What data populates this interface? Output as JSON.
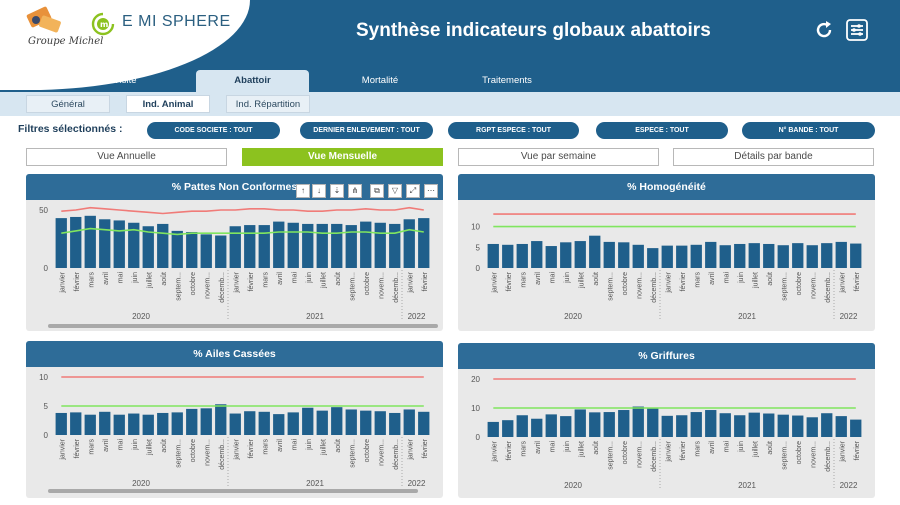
{
  "header": {
    "logo_text": "Groupe Michel",
    "brand": "E MI SPHERE",
    "title": "Synthèse indicateurs globaux abattoirs",
    "icons": [
      "refresh-icon",
      "settings-sliders-icon"
    ]
  },
  "tabs": [
    {
      "label": "Visite"
    },
    {
      "label": "Abattoir"
    },
    {
      "label": "Mortalité"
    },
    {
      "label": "Traitements"
    }
  ],
  "subtabs": [
    {
      "label": "Général"
    },
    {
      "label": "Ind. Animal"
    },
    {
      "label": "Ind. Répartition"
    }
  ],
  "filters": {
    "label": "Filtres sélectionnés :",
    "pills": [
      "CODE SOCIETE : TOUT",
      "DERNIER ENLEVEMENT : TOUT",
      "RGPT ESPECE : TOUT",
      "ESPECE : TOUT",
      "N° BANDE : TOUT"
    ]
  },
  "views": [
    {
      "label": "Vue Annuelle"
    },
    {
      "label": "Vue Mensuelle"
    },
    {
      "label": "Vue par semaine"
    },
    {
      "label": "Détails par bande"
    }
  ],
  "colors": {
    "header_blue": "#1f5f8b",
    "panel_blue": "#2e6c98",
    "bar": "#1f5f8b",
    "accent_green": "#8cc21f",
    "threshold_red": "#f07b78",
    "threshold_green": "#80e55f"
  },
  "toolbar_icons": [
    "sort-up-icon",
    "sort-down-icon",
    "arrow-down-icon",
    "hierarchy-icon",
    "copy-icon",
    "filter-icon",
    "expand-icon",
    "more-icon"
  ],
  "x_axis": {
    "months": [
      "janvier",
      "février",
      "mars",
      "avril",
      "mai",
      "juin",
      "juillet",
      "août",
      "septem...",
      "octobre",
      "novem...",
      "décemb...",
      "janvier",
      "février",
      "mars",
      "avril",
      "mai",
      "juin",
      "juillet",
      "août",
      "septem...",
      "octobre",
      "novem...",
      "décemb...",
      "janvier",
      "février"
    ],
    "years": [
      "2020",
      "2021",
      "2022"
    ]
  },
  "chart_data": [
    {
      "type": "bar",
      "title": "% Pattes Non Conformes",
      "ylim": [
        0,
        50
      ],
      "yticks": [
        0,
        50
      ],
      "values": [
        43,
        44,
        45,
        42,
        41,
        39,
        36,
        38,
        32,
        31,
        29,
        28,
        36,
        37,
        37,
        40,
        39,
        38,
        38,
        38,
        37,
        40,
        39,
        38,
        42,
        43
      ],
      "series": [
        {
          "name": "",
          "color": "#f07b78",
          "values": [
            49,
            50,
            52,
            51,
            50,
            49,
            48,
            47,
            48,
            49,
            49,
            50,
            50,
            51,
            51,
            50,
            50,
            49,
            49,
            50,
            50,
            51,
            50,
            50,
            52,
            50
          ]
        },
        {
          "name": "",
          "color": "#80e55f",
          "values": [
            30,
            32,
            34,
            33,
            32,
            33,
            31,
            30,
            29,
            30,
            30,
            30,
            30,
            30,
            30,
            31,
            31,
            31,
            30,
            30,
            31,
            31,
            30,
            30,
            33,
            31
          ]
        }
      ]
    },
    {
      "type": "bar",
      "title": "% Homogénéité",
      "ylim": [
        0,
        14
      ],
      "yticks": [
        0,
        5,
        10
      ],
      "values": [
        5.8,
        5.6,
        5.8,
        6.5,
        5.3,
        6.2,
        6.5,
        7.8,
        6.3,
        6.2,
        5.6,
        4.8,
        5.4,
        5.4,
        5.6,
        6.3,
        5.5,
        5.8,
        6.0,
        5.8,
        5.5,
        6.0,
        5.5,
        6.0,
        6.3,
        5.9
      ],
      "series": [
        {
          "name": "",
          "color": "#f07b78",
          "values": [
            13,
            13,
            13,
            13,
            13,
            13,
            13,
            13,
            13,
            13,
            13,
            13,
            13,
            13,
            13,
            13,
            13,
            13,
            13,
            13,
            13,
            13,
            13,
            13,
            13,
            13
          ]
        },
        {
          "name": "",
          "color": "#80e55f",
          "values": [
            10,
            10,
            10,
            10,
            10,
            10,
            10,
            10,
            10,
            10,
            10,
            10,
            10,
            10,
            10,
            10,
            10,
            10,
            10,
            10,
            10,
            10,
            10,
            10,
            10,
            10
          ]
        }
      ]
    },
    {
      "type": "bar",
      "title": "% Ailes Cassées",
      "ylim": [
        0,
        10
      ],
      "yticks": [
        0,
        5,
        10
      ],
      "values": [
        3.8,
        3.9,
        3.5,
        4.0,
        3.5,
        3.7,
        3.5,
        3.8,
        3.9,
        4.5,
        4.6,
        5.3,
        3.7,
        4.1,
        4.0,
        3.6,
        3.9,
        4.7,
        4.2,
        4.8,
        4.4,
        4.2,
        4.1,
        3.8,
        4.4,
        4.0
      ],
      "series": [
        {
          "name": "",
          "color": "#f07b78",
          "values": [
            10,
            10,
            10,
            10,
            10,
            10,
            10,
            10,
            10,
            10,
            10,
            10,
            10,
            10,
            10,
            10,
            10,
            10,
            10,
            10,
            10,
            10,
            10,
            10,
            10,
            10
          ]
        },
        {
          "name": "",
          "color": "#80e55f",
          "values": [
            5,
            5,
            5,
            5,
            5,
            5,
            5,
            5,
            5,
            5,
            5,
            5,
            5,
            5,
            5,
            5,
            5,
            5,
            5,
            5,
            5,
            5,
            5,
            5,
            5,
            5
          ]
        }
      ]
    },
    {
      "type": "bar",
      "title": "% Griffures",
      "ylim": [
        0,
        20
      ],
      "yticks": [
        0,
        10,
        20
      ],
      "values": [
        5.2,
        5.8,
        7.5,
        6.3,
        7.8,
        7.2,
        9.5,
        8.5,
        8.6,
        9.3,
        10.5,
        9.8,
        7.3,
        7.5,
        8.6,
        9.3,
        8.2,
        7.5,
        8.4,
        8.1,
        7.7,
        7.4,
        6.8,
        8.2,
        7.2,
        6.0
      ],
      "series": [
        {
          "name": "",
          "color": "#f07b78",
          "values": [
            20,
            20,
            20,
            20,
            20,
            20,
            20,
            20,
            20,
            20,
            20,
            20,
            20,
            20,
            20,
            20,
            20,
            20,
            20,
            20,
            20,
            20,
            20,
            20,
            20,
            20
          ]
        },
        {
          "name": "",
          "color": "#80e55f",
          "values": [
            10,
            10,
            10,
            10,
            10,
            10,
            10,
            10,
            10,
            10,
            10,
            10,
            10,
            10,
            10,
            10,
            10,
            10,
            10,
            10,
            10,
            10,
            10,
            10,
            10,
            10
          ]
        }
      ]
    }
  ]
}
